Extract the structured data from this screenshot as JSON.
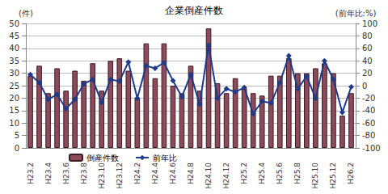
{
  "chart_data": {
    "type": "bar",
    "title": "企業倒産件数",
    "ylabel": "(件)",
    "y2label": "(前年比:%)",
    "categories": [
      "H23.2",
      null,
      "H23.4",
      null,
      "H23.6",
      null,
      "H23.8",
      null,
      "H23.10",
      null,
      "H23.12",
      null,
      "H24.2",
      null,
      "H24.4",
      null,
      "H24.6",
      null,
      "H24.8",
      null,
      "H24.10",
      null,
      "H24.12",
      null,
      "H25.2",
      null,
      "H25.4",
      null,
      "H25.6",
      null,
      "H25.8",
      null,
      "H25.10",
      null,
      "H25.12",
      null,
      "H26.2"
    ],
    "series": [
      {
        "name": "倒産件数",
        "type": "bar",
        "color": "#8c4a5a",
        "values": [
          29,
          33,
          22,
          32,
          23,
          31,
          27,
          34,
          23,
          35,
          36,
          31,
          20,
          42,
          28,
          42,
          25,
          22,
          33,
          23,
          48,
          26,
          22,
          28,
          24,
          22,
          21,
          29,
          29,
          36,
          30,
          30,
          32,
          34,
          30,
          13,
          22
        ]
      },
      {
        "name": "前年比",
        "type": "line",
        "axis": "y2",
        "color": "#1f3a8a",
        "marker": "diamond",
        "values": [
          18,
          5,
          -22,
          -14,
          -37,
          -22,
          3,
          10,
          -27,
          10,
          7,
          38,
          -20,
          32,
          28,
          37,
          8,
          -18,
          18,
          -30,
          65,
          -20,
          -5,
          -10,
          -3,
          -45,
          -25,
          -28,
          5,
          48,
          -5,
          15,
          -20,
          40,
          10,
          -43,
          -2
        ]
      }
    ],
    "ylim": [
      0,
      50
    ],
    "yticks": [
      0,
      5,
      10,
      15,
      20,
      25,
      30,
      35,
      40,
      45,
      50
    ],
    "y2lim": [
      -100,
      100
    ],
    "y2ticks": [
      -100,
      -80,
      -60,
      -40,
      -20,
      0,
      20,
      40,
      60,
      80,
      100
    ],
    "grid": true,
    "legend": "bottom"
  }
}
